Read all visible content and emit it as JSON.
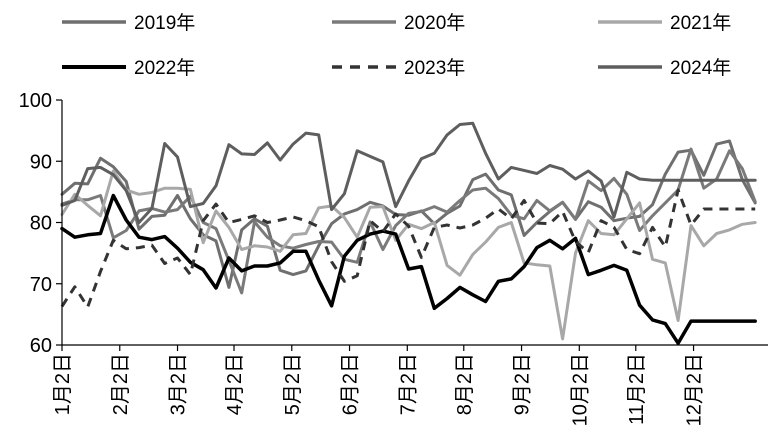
{
  "chart_data": {
    "type": "line",
    "title": "",
    "xlabel": "",
    "ylabel": "",
    "ylim": [
      60,
      100
    ],
    "yticks": [
      60,
      70,
      80,
      90,
      100
    ],
    "grid": false,
    "legend_position": "top",
    "x_tick_labels": [
      "1月2日",
      "2月2日",
      "3月2日",
      "4月2日",
      "5月2日",
      "6月2日",
      "7月2日",
      "8月2日",
      "9月2日",
      "10月2日",
      "11月2日",
      "12月2日"
    ],
    "x_tick_weeks": [
      0,
      4.5,
      9,
      13.4,
      17.9,
      22.4,
      26.9,
      31.3,
      35.8,
      40.3,
      44.7,
      49.2
    ],
    "x_week_max": 55,
    "series": [
      {
        "name": "2019年",
        "color": "#6f6f6f",
        "dash": "solid",
        "width": 3,
        "values": [
          84.6,
          86.4,
          86.3,
          90.5,
          89.1,
          86.7,
          78.9,
          81.0,
          81.2,
          84.4,
          80.6,
          78.0,
          77.0,
          69.4,
          78.8,
          80.6,
          79.4,
          72.2,
          71.5,
          72.1,
          76.2,
          79.8,
          81.4,
          82.1,
          83.3,
          82.7,
          81.3,
          81.2,
          81.9,
          79.8,
          81.5,
          82.7,
          87.0,
          87.9,
          85.3,
          84.5,
          77.9,
          80.0,
          81.8,
          83.3,
          80.5,
          83.4,
          82.5,
          80.3,
          80.7,
          81.0,
          82.9,
          87.9,
          91.5,
          91.8,
          87.7,
          92.8,
          93.3,
          87.0,
          83.2
        ]
      },
      {
        "name": "2020年",
        "color": "#7a7a7a",
        "dash": "solid",
        "width": 3,
        "values": [
          83.0,
          83.7,
          83.7,
          84.4,
          77.5,
          78.7,
          81.9,
          82.3,
          81.7,
          82.1,
          84.3,
          80.0,
          79.0,
          73.8,
          68.5,
          80.1,
          77.6,
          76.2,
          75.8,
          76.4,
          76.9,
          76.8,
          74.0,
          73.5,
          80.1,
          75.6,
          79.5,
          81.5,
          81.8,
          82.6,
          81.7,
          83.6,
          85.3,
          85.6,
          83.9,
          81.2,
          80.6,
          83.6,
          81.9,
          83.3,
          80.5,
          86.8,
          85.2,
          87.2,
          84.6,
          78.7,
          81.1,
          83.2,
          85.3,
          92.0,
          85.6,
          87.1,
          91.7,
          88.8,
          83.4
        ]
      },
      {
        "name": "2021年",
        "color": "#a8a8a8",
        "dash": "solid",
        "width": 3,
        "values": [
          81.3,
          84.6,
          82.8,
          81.1,
          88.4,
          85.3,
          84.6,
          84.9,
          85.6,
          85.6,
          85.4,
          76.7,
          81.9,
          79.2,
          75.6,
          76.2,
          76.0,
          75.3,
          78.0,
          78.2,
          82.4,
          82.7,
          80.8,
          77.6,
          82.5,
          82.6,
          77.1,
          79.7,
          79.0,
          80.0,
          73.0,
          71.4,
          74.8,
          76.8,
          79.2,
          80.0,
          73.4,
          73.1,
          72.9,
          61.0,
          75.0,
          80.3,
          78.2,
          78.0,
          80.6,
          83.2,
          74.0,
          73.4,
          64.0,
          79.5,
          76.2,
          78.2,
          78.8,
          79.7,
          80.0
        ]
      },
      {
        "name": "2022年",
        "color": "#000000",
        "dash": "solid",
        "width": 3.5,
        "values": [
          79.0,
          77.6,
          78.0,
          78.2,
          84.4,
          80.4,
          77.6,
          77.2,
          77.7,
          75.8,
          73.5,
          72.3,
          69.3,
          74.2,
          72.1,
          72.9,
          72.9,
          73.4,
          75.3,
          75.3,
          70.6,
          66.4,
          74.5,
          77.1,
          78.1,
          78.6,
          78.1,
          72.4,
          72.8,
          66.0,
          67.6,
          69.4,
          68.2,
          67.1,
          70.4,
          70.8,
          72.8,
          75.9,
          77.1,
          75.7,
          77.4,
          71.5,
          72.2,
          73.0,
          72.2,
          66.5,
          64.1,
          63.5,
          60.3,
          63.9,
          63.9,
          63.9,
          63.9,
          63.9,
          63.9
        ]
      },
      {
        "name": "2023年",
        "color": "#333333",
        "dash": "dashed",
        "width": 3,
        "values": [
          66.3,
          69.5,
          66.2,
          72.0,
          77.1,
          75.7,
          75.9,
          76.3,
          73.3,
          74.2,
          71.5,
          80.3,
          83.0,
          80.0,
          80.5,
          81.1,
          80.0,
          80.4,
          80.9,
          80.3,
          79.3,
          73.6,
          70.4,
          71.3,
          80.3,
          78.5,
          81.4,
          79.4,
          74.3,
          79.2,
          79.6,
          79.1,
          79.6,
          80.7,
          82.2,
          80.6,
          83.6,
          79.9,
          79.8,
          81.8,
          76.9,
          75.1,
          80.3,
          79.2,
          75.6,
          74.9,
          79.2,
          76.0,
          85.3,
          79.6,
          82.2,
          82.2,
          82.2,
          82.2,
          82.2
        ]
      },
      {
        "name": "2024年",
        "color": "#5e5e5e",
        "dash": "solid",
        "width": 3,
        "values": [
          82.8,
          83.6,
          88.8,
          89.0,
          87.8,
          85.2,
          80.0,
          82.3,
          92.9,
          90.7,
          82.6,
          83.1,
          86.0,
          92.7,
          91.2,
          91.1,
          93.0,
          90.2,
          92.8,
          94.6,
          94.3,
          82.1,
          84.7,
          91.7,
          90.8,
          89.9,
          82.6,
          86.8,
          90.4,
          91.3,
          94.3,
          96.0,
          96.2,
          91.3,
          87.1,
          89.0,
          88.5,
          88.0,
          89.3,
          88.7,
          87.1,
          88.4,
          86.8,
          80.9,
          88.2,
          87.1,
          86.9,
          86.9,
          86.9,
          86.9,
          86.9,
          86.9,
          86.9,
          86.9,
          86.9
        ]
      }
    ]
  }
}
